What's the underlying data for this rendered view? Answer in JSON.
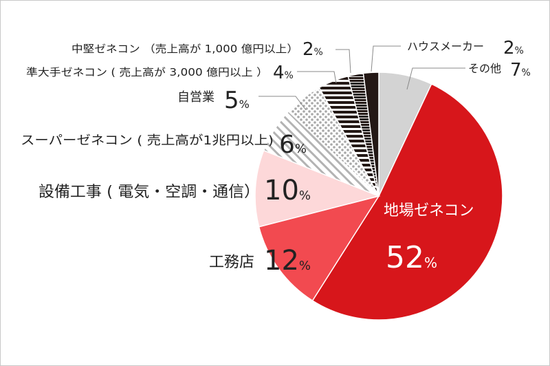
{
  "chart_data": {
    "type": "pie",
    "title": "",
    "slices": [
      {
        "label": "地場ゼネコン",
        "value": 52,
        "color": "#d7161b",
        "fill": "solid"
      },
      {
        "label": "工務店",
        "value": 12,
        "color": "#f24a50",
        "fill": "solid"
      },
      {
        "label": "設備工事 ( 電気・空調・通信）",
        "value": 10,
        "color": "#fdd8d9",
        "fill": "solid"
      },
      {
        "label": "スーパーゼネコン ( 売上高が1兆円以上)",
        "value": 6,
        "color": "#ababab",
        "fill": "diagonal-stripes"
      },
      {
        "label": "自営業",
        "value": 5,
        "color": "#ababab",
        "fill": "dots"
      },
      {
        "label": "準大手ゼネコン ( 売上高が 3,000 億円以上 ）",
        "value": 4,
        "color": "#231815",
        "fill": "horizontal-stripes"
      },
      {
        "label": "中堅ゼネコン （売上高が 1,000 億円以上）",
        "value": 2,
        "color": "#231815",
        "fill": "horizontal-stripes-dense"
      },
      {
        "label": "ハウスメーカー",
        "value": 2,
        "color": "#231815",
        "fill": "solid"
      },
      {
        "label": "その他",
        "value": 7,
        "color": "#d3d3d3",
        "fill": "solid"
      }
    ],
    "percent_unit": "%",
    "legend": "none"
  },
  "labels": {
    "jiba_name": "地場ゼネコン",
    "jiba_value": "52",
    "koumuten_name": "工務店",
    "koumuten_value": "12",
    "setsubi_name": "設備工事 ( 電気・空調・通信）",
    "setsubi_value": "10",
    "super_name": "スーパーゼネコン ( 売上高が1兆円以上)",
    "super_value": "6",
    "jieigyo_name": "自営業",
    "jieigyo_value": "5",
    "junoote_name": "準大手ゼネコン ( 売上高が 3,000 億円以上 ）",
    "junoote_value": "4",
    "chuken_name": "中堅ゼネコン （売上高が 1,000 億円以上）",
    "chuken_value": "2",
    "house_name": "ハウスメーカー",
    "house_value": "2",
    "sonota_name": "その他",
    "sonota_value": "7",
    "percent": "%"
  }
}
